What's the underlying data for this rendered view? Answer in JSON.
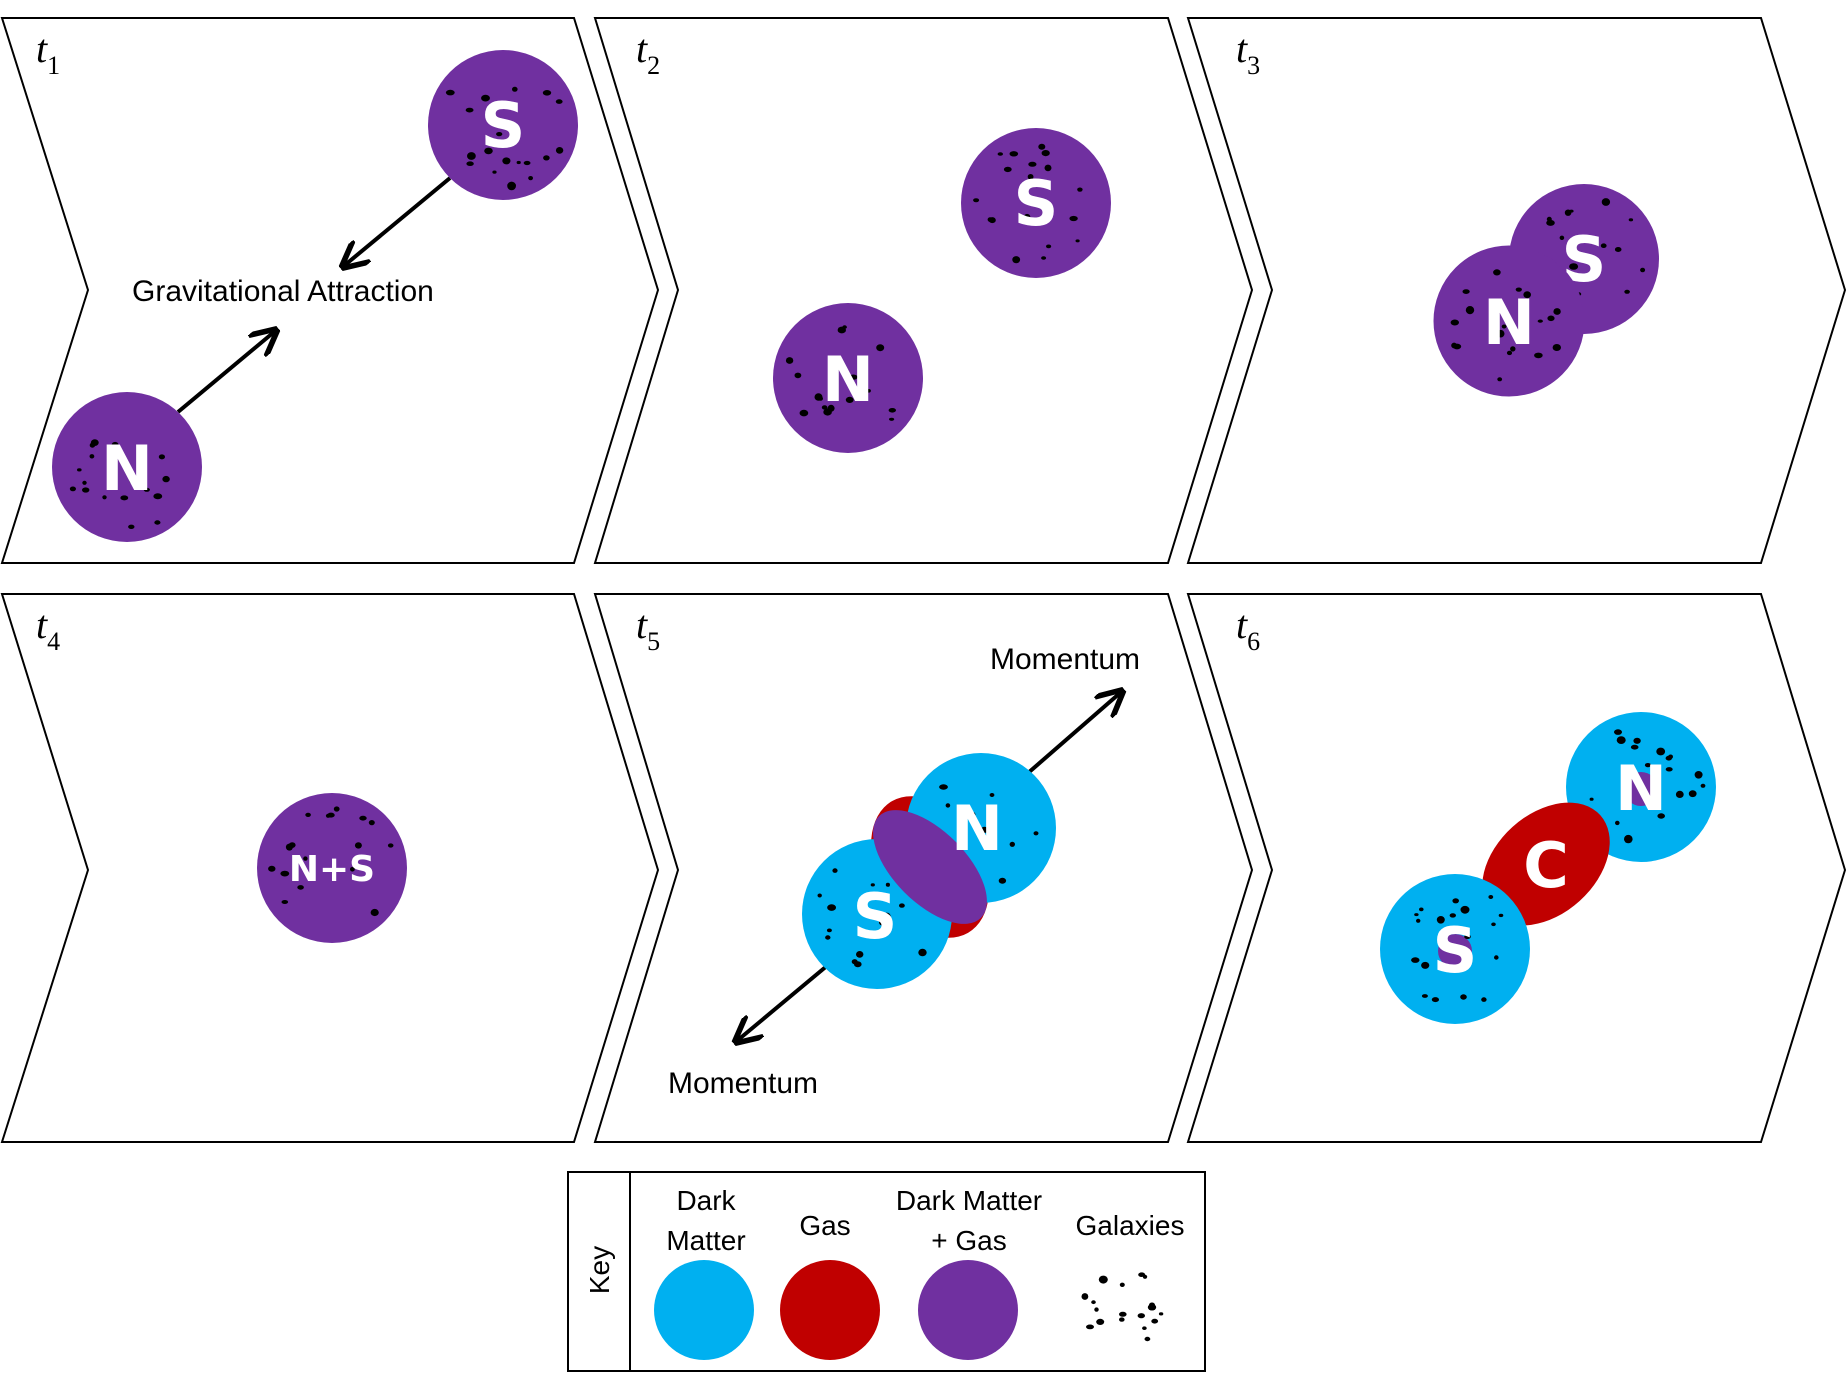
{
  "colors": {
    "dark_matter": "#00b0f0",
    "gas": "#c00000",
    "dark_matter_gas": "#7030a0",
    "galaxy_dots": "#000000",
    "cluster_label": "#ffffff"
  },
  "panels": [
    {
      "id": "t1",
      "t_main": "t",
      "t_sub": "1"
    },
    {
      "id": "t2",
      "t_main": "t",
      "t_sub": "2"
    },
    {
      "id": "t3",
      "t_main": "t",
      "t_sub": "3"
    },
    {
      "id": "t4",
      "t_main": "t",
      "t_sub": "4"
    },
    {
      "id": "t5",
      "t_main": "t",
      "t_sub": "5"
    },
    {
      "id": "t6",
      "t_main": "t",
      "t_sub": "6"
    }
  ],
  "labels": {
    "gravitational_attraction": "Gravitational Attraction",
    "momentum_upper": "Momentum",
    "momentum_lower": "Momentum"
  },
  "clusters": {
    "north": "N",
    "south": "S",
    "merged": "N+S",
    "center": "C"
  },
  "key": {
    "title": "Key",
    "dark_matter_line1": "Dark",
    "dark_matter_line2": "Matter",
    "gas": "Gas",
    "dm_gas_line1": "Dark Matter",
    "dm_gas_line2": "+ Gas",
    "galaxies": "Galaxies"
  }
}
